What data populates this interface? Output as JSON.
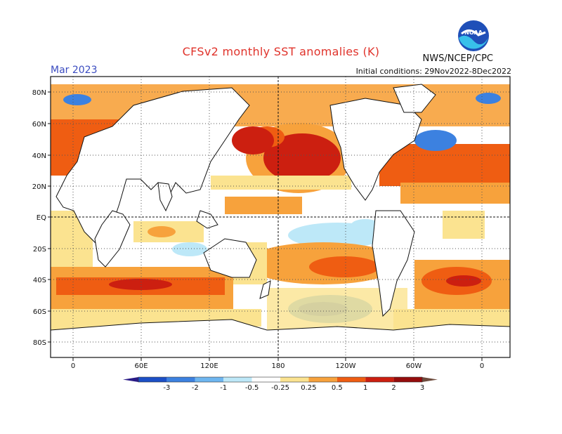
{
  "title": "CFSv2 monthly SST anomalies (K)",
  "month_label": "Mar 2023",
  "initial_conditions": "Initial conditions: 29Nov2022-8Dec2022",
  "agency": "NWS/NCEP/CPC",
  "logo_text": "NOAA",
  "lat_labels": [
    "80N",
    "60N",
    "40N",
    "20N",
    "EQ",
    "20S",
    "40S",
    "60S",
    "80S"
  ],
  "lon_labels": [
    "0",
    "60E",
    "120E",
    "180",
    "120W",
    "60W",
    "0"
  ],
  "colorbar": {
    "labels": [
      "-3",
      "-2",
      "-1",
      "-0.5",
      "-0.25",
      "0.25",
      "0.5",
      "1",
      "2",
      "3"
    ],
    "colors": [
      "#2a1b86",
      "#1c4fc6",
      "#3c81e0",
      "#6eb6f0",
      "#bde8f8",
      "#ffffff",
      "#fbe390",
      "#f7a23c",
      "#ef5d12",
      "#cc1f10",
      "#950c0c",
      "#6e4c3e"
    ]
  }
}
